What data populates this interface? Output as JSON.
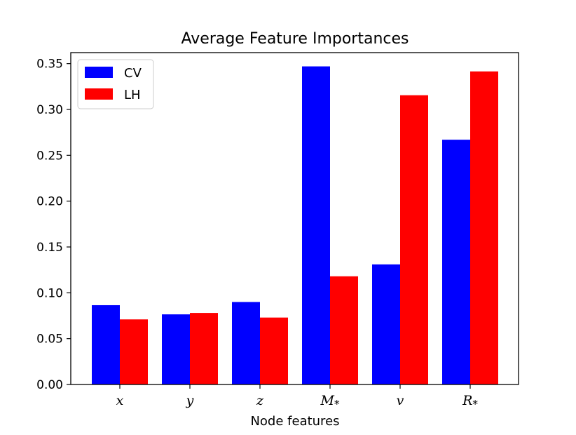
{
  "chart_data": {
    "type": "bar",
    "title": "Average Feature Importances",
    "xlabel": "Node features",
    "ylabel": "",
    "categories": [
      "x",
      "y",
      "z",
      "M*",
      "v",
      "R*"
    ],
    "series": [
      {
        "name": "CV",
        "color": "#0000ff",
        "values": [
          0.0865,
          0.0765,
          0.09,
          0.347,
          0.131,
          0.267
        ]
      },
      {
        "name": "LH",
        "color": "#ff0000",
        "values": [
          0.071,
          0.078,
          0.073,
          0.118,
          0.3155,
          0.3415
        ]
      }
    ],
    "ylim": [
      0,
      0.362
    ],
    "yticks": [
      "0.00",
      "0.05",
      "0.10",
      "0.15",
      "0.20",
      "0.25",
      "0.30",
      "0.35"
    ],
    "grid": false,
    "legend_position": "top-left"
  }
}
